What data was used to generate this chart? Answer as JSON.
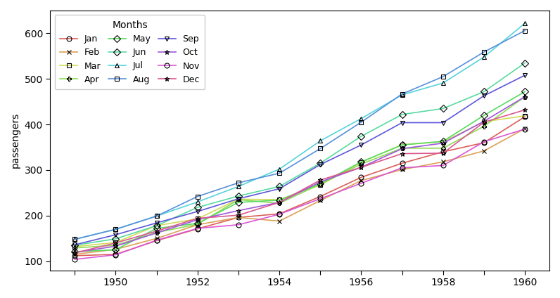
{
  "title": "Months",
  "ylabel": "passengers",
  "months": [
    "Jan",
    "Feb",
    "Mar",
    "Apr",
    "May",
    "Jun",
    "Jul",
    "Aug",
    "Sep",
    "Oct",
    "Nov",
    "Dec"
  ],
  "colors": [
    "#1f77b4",
    "#ff7f0e",
    "#2ca02c",
    "#d62728",
    "#9467bd",
    "#8c564b",
    "#e377c2",
    "#7f7f7f",
    "#bcbd22",
    "#17becf",
    "#aec7e8",
    "#ffbb78"
  ],
  "sns_colors": [
    "#4c72b0",
    "#dd8452",
    "#55a868",
    "#c44e52",
    "#8172b2",
    "#937860",
    "#da8bc3",
    "#8c8c8c",
    "#ccb974",
    "#64b5cd"
  ],
  "markers": [
    "o",
    "x",
    "s",
    "P",
    "D",
    "D",
    "^",
    "s",
    "v",
    "*",
    "o",
    "*"
  ],
  "data": {
    "1949": [
      112,
      115,
      132,
      129,
      121,
      135,
      148,
      148,
      136,
      119,
      104,
      118
    ],
    "1950": [
      115,
      126,
      141,
      135,
      125,
      149,
      170,
      170,
      158,
      133,
      114,
      140
    ],
    "1951": [
      145,
      150,
      178,
      163,
      172,
      178,
      199,
      199,
      184,
      162,
      146,
      166
    ],
    "1952": [
      171,
      180,
      193,
      181,
      183,
      218,
      230,
      242,
      209,
      191,
      172,
      194
    ],
    "1953": [
      196,
      196,
      236,
      235,
      229,
      243,
      264,
      272,
      237,
      211,
      180,
      201
    ],
    "1954": [
      204,
      188,
      235,
      227,
      234,
      264,
      302,
      293,
      259,
      229,
      203,
      229
    ],
    "1955": [
      242,
      233,
      267,
      269,
      270,
      315,
      364,
      347,
      312,
      274,
      237,
      278
    ],
    "1956": [
      284,
      277,
      317,
      313,
      318,
      374,
      413,
      405,
      355,
      306,
      271,
      306
    ],
    "1957": [
      315,
      301,
      356,
      348,
      355,
      422,
      465,
      467,
      404,
      347,
      305,
      336
    ],
    "1958": [
      340,
      318,
      362,
      348,
      363,
      435,
      491,
      505,
      404,
      359,
      310,
      337
    ],
    "1959": [
      360,
      342,
      406,
      396,
      420,
      472,
      548,
      559,
      463,
      407,
      362,
      405
    ],
    "1960": [
      417,
      391,
      419,
      461,
      472,
      535,
      622,
      606,
      508,
      461,
      390,
      432
    ]
  },
  "figsize": [
    7.96,
    4.24
  ],
  "dpi": 100,
  "ylim": [
    80,
    650
  ],
  "xlim": [
    1948.4,
    1960.6
  ]
}
